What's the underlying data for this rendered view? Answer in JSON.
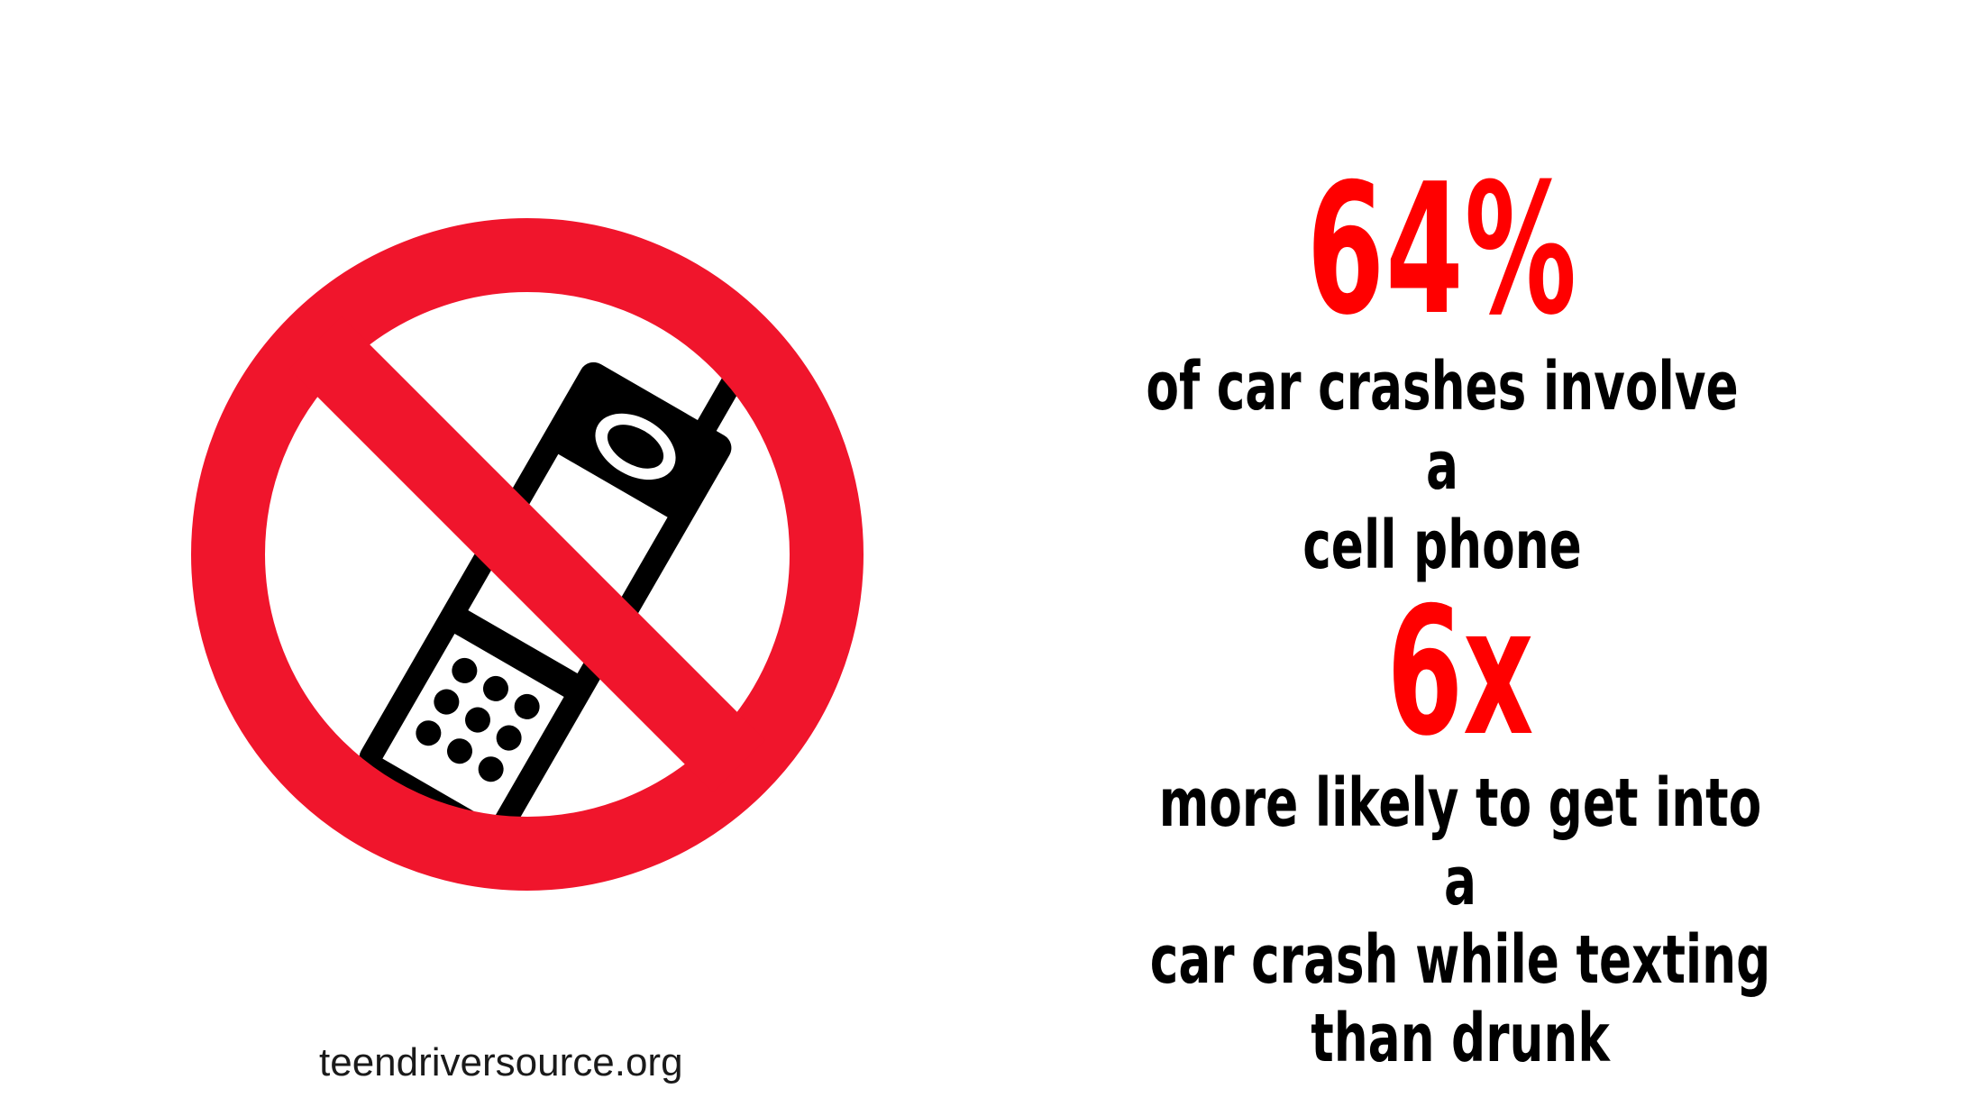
{
  "stats": [
    {
      "number": "64%",
      "caption_lines": [
        "of car crashes involve a",
        "cell phone"
      ]
    },
    {
      "number": "6x",
      "caption_lines": [
        "more likely to get into a",
        "car crash while texting",
        "than drunk"
      ]
    }
  ],
  "source": "teendriversource.org",
  "icon": "no-cell-phone-icon",
  "colors": {
    "accent_red": "#ff0000",
    "sign_red": "#f0152c",
    "text": "#000000",
    "background": "#ffffff"
  }
}
